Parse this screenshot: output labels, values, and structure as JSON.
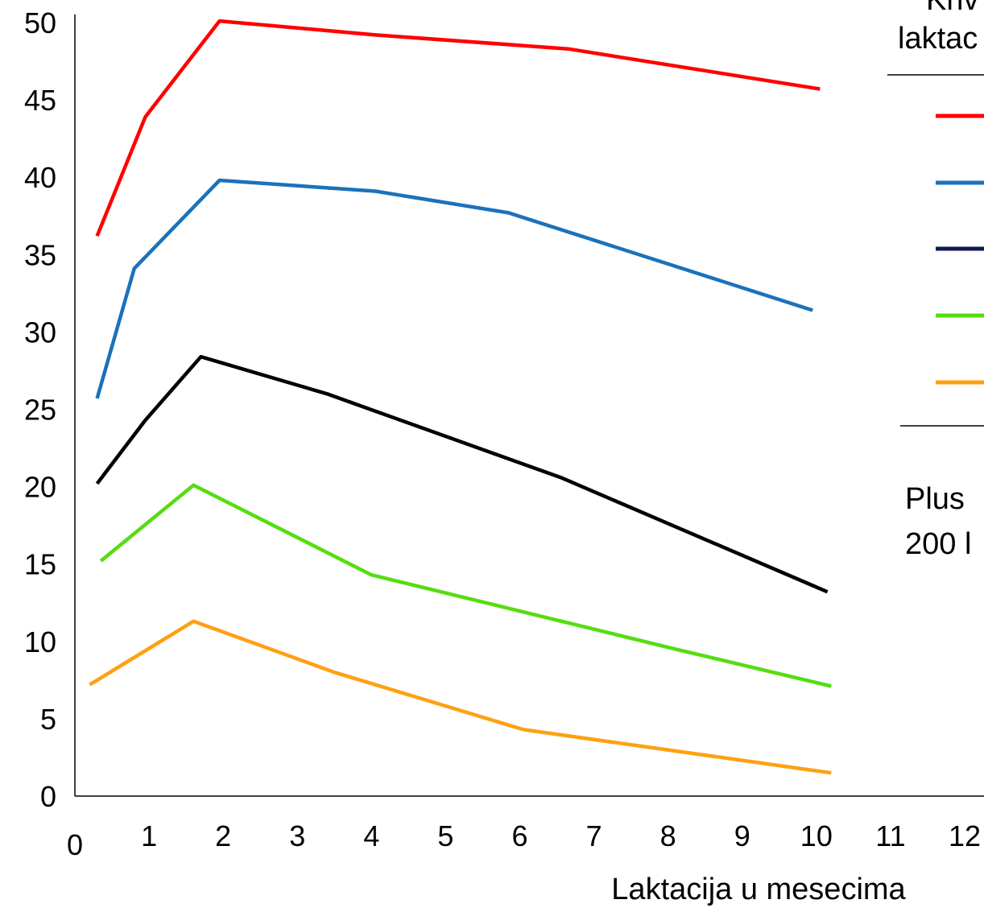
{
  "chart_data": {
    "type": "line",
    "title": "",
    "xlabel": "Laktacija u mesecima",
    "ylabel": "",
    "xlim": [
      0,
      12
    ],
    "ylim": [
      0,
      50
    ],
    "x_ticks": [
      "0",
      "1",
      "2",
      "3",
      "4",
      "5",
      "6",
      "7",
      "8",
      "9",
      "10",
      "11",
      "12"
    ],
    "y_ticks": [
      "0",
      "5",
      "10",
      "15",
      "20",
      "25",
      "30",
      "35",
      "40",
      "45",
      "50"
    ],
    "grid": false,
    "series": [
      {
        "color": "#ff0000",
        "points": [
          [
            0.3,
            36.2
          ],
          [
            0.95,
            43.9
          ],
          [
            1.95,
            50.1
          ],
          [
            4.05,
            49.2
          ],
          [
            6.65,
            48.3
          ],
          [
            10.05,
            45.7
          ]
        ]
      },
      {
        "color": "#1a72bb",
        "points": [
          [
            0.3,
            25.7
          ],
          [
            0.8,
            34.1
          ],
          [
            1.95,
            39.8
          ],
          [
            4.05,
            39.1
          ],
          [
            5.85,
            37.7
          ],
          [
            9.95,
            31.4
          ]
        ]
      },
      {
        "color": "#000000",
        "points": [
          [
            0.3,
            20.2
          ],
          [
            0.95,
            24.3
          ],
          [
            1.7,
            28.4
          ],
          [
            3.4,
            26.0
          ],
          [
            6.55,
            20.6
          ],
          [
            10.15,
            13.2
          ]
        ]
      },
      {
        "color": "#55dd11",
        "points": [
          [
            0.35,
            15.2
          ],
          [
            1.6,
            20.1
          ],
          [
            4.0,
            14.3
          ],
          [
            8.1,
            9.5
          ],
          [
            10.2,
            7.1
          ]
        ]
      },
      {
        "color": "#ffa012",
        "points": [
          [
            0.2,
            7.2
          ],
          [
            1.6,
            11.3
          ],
          [
            3.5,
            8.0
          ],
          [
            6.05,
            4.3
          ],
          [
            10.2,
            1.5
          ]
        ]
      }
    ],
    "legend": {
      "title_lines": [
        "Kriv",
        "laktac"
      ],
      "colors": [
        "#ff0000",
        "#1a72bb",
        "#0d1a4f",
        "#55dd11",
        "#ffa012"
      ],
      "placement": "right"
    },
    "note_lines": [
      "Plus",
      "200 l"
    ]
  }
}
